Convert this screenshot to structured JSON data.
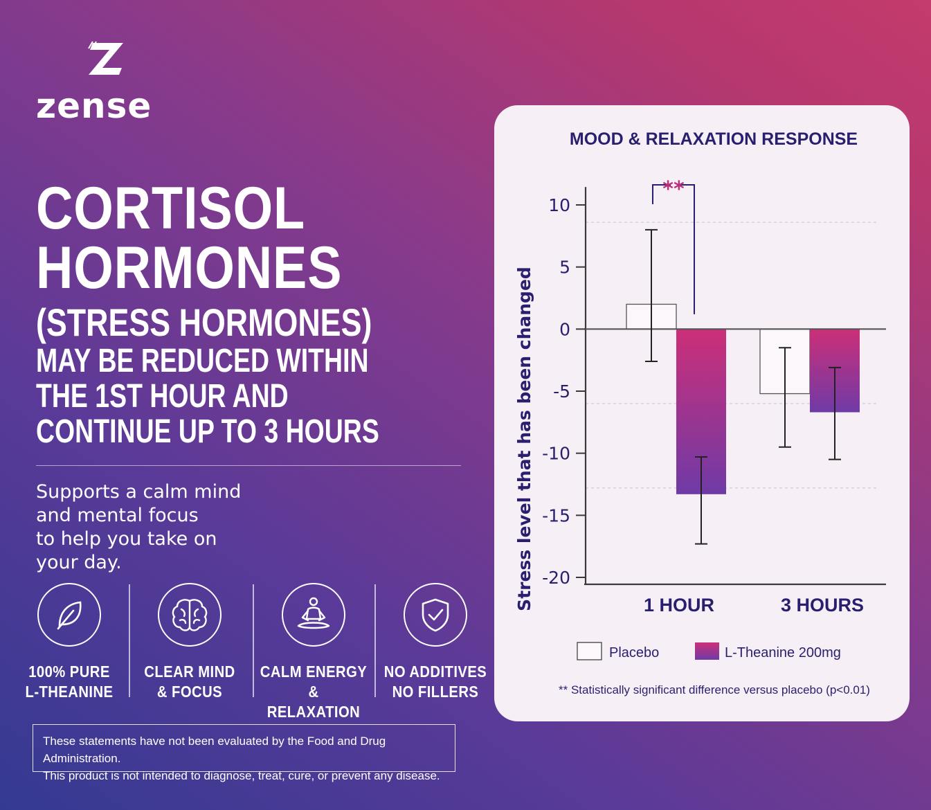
{
  "brand": {
    "name": "zense"
  },
  "headline": {
    "line1": "CORTISOL",
    "line2": "HORMONES",
    "line3": "(STRESS HORMONES)",
    "line4": "MAY BE REDUCED WITHIN",
    "line5": "THE 1ST HOUR AND",
    "line6": "CONTINUE UP TO 3 HOURS"
  },
  "tagline": {
    "line1": "Supports a calm mind",
    "line2": "and mental focus",
    "line3": "to help you take on",
    "line4": "your day."
  },
  "features": [
    {
      "icon": "leaf-icon",
      "line1": "100% PURE",
      "line2": "L-THEANINE"
    },
    {
      "icon": "brain-icon",
      "line1": "CLEAR MIND",
      "line2": "& FOCUS"
    },
    {
      "icon": "meditation-icon",
      "line1": "CALM ENERGY",
      "line2": "& RELAXATION"
    },
    {
      "icon": "shield-check-icon",
      "line1": "NO ADDITIVES",
      "line2": "NO FILLERS"
    }
  ],
  "disclaimer": {
    "line1": "These statements have not been evaluated by the Food and Drug Administration.",
    "line2": "This product is not intended to diagnose, treat, cure, or prevent any disease."
  },
  "colors": {
    "title_navy": "#2a1f6e",
    "significance_magenta": "#b8307a",
    "theanine_top": "#cc2f78",
    "theanine_bottom": "#6f3aa6",
    "placebo_fill": "#fbf7fb"
  },
  "chart_data": {
    "type": "bar",
    "title": "MOOD & RELAXATION RESPONSE",
    "ylabel": "Stress level that has been changed",
    "xlabel": "",
    "categories": [
      "1 HOUR",
      "3 HOURS"
    ],
    "ylim": [
      -20,
      11
    ],
    "yticks": [
      10,
      5,
      0,
      -5,
      -10,
      -15,
      -20
    ],
    "series": [
      {
        "name": "Placebo",
        "values": [
          2,
          -5.2
        ],
        "error_low": [
          -2.6,
          -9.5
        ],
        "error_high": [
          8,
          -1.5
        ]
      },
      {
        "name": "L-Theanine 200mg",
        "values": [
          -13.3,
          -6.7
        ],
        "error_low": [
          -17.3,
          -10.5
        ],
        "error_high": [
          -10.3,
          -3.1
        ]
      }
    ],
    "significance": {
      "category": "1 HOUR",
      "marker": "**"
    },
    "footnote": "** Statistically significant difference versus placebo (p<0.01)",
    "legend": "bottom"
  }
}
